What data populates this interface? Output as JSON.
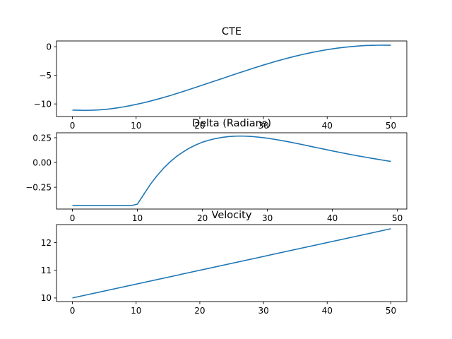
{
  "chart_data": [
    {
      "type": "line",
      "title": "CTE",
      "xlabel": "",
      "ylabel": "",
      "xlim": [
        -2.5,
        52.5
      ],
      "ylim": [
        -12.2,
        1.0
      ],
      "xticks": [
        0,
        10,
        20,
        30,
        40,
        50
      ],
      "xtick_labels": [
        "0",
        "10",
        "20",
        "30",
        "40",
        "50"
      ],
      "yticks": [
        0,
        -5,
        -10
      ],
      "ytick_labels": [
        "0",
        "−5",
        "−10"
      ],
      "grid": false,
      "color": "#1f77b4",
      "series": [
        {
          "x": [
            0,
            1,
            2,
            3,
            4,
            5,
            6,
            7,
            8,
            9,
            10,
            11,
            12,
            13,
            14,
            15,
            16,
            17,
            18,
            19,
            20,
            21,
            22,
            23,
            24,
            25,
            26,
            27,
            28,
            29,
            30,
            31,
            32,
            33,
            34,
            35,
            36,
            37,
            38,
            39,
            40,
            41,
            42,
            43,
            44,
            45,
            46,
            47,
            48,
            49,
            50
          ],
          "y": [
            -11.08,
            -11.1,
            -11.12,
            -11.1,
            -11.05,
            -10.97,
            -10.85,
            -10.7,
            -10.52,
            -10.31,
            -10.08,
            -9.84,
            -9.57,
            -9.28,
            -8.97,
            -8.65,
            -8.31,
            -7.96,
            -7.6,
            -7.24,
            -6.87,
            -6.5,
            -6.12,
            -5.75,
            -5.38,
            -5.0,
            -4.63,
            -4.27,
            -3.9,
            -3.55,
            -3.2,
            -2.87,
            -2.54,
            -2.24,
            -1.94,
            -1.66,
            -1.39,
            -1.15,
            -0.92,
            -0.71,
            -0.52,
            -0.35,
            -0.2,
            -0.07,
            0.04,
            0.13,
            0.2,
            0.24,
            0.26,
            0.27,
            0.25
          ]
        }
      ]
    },
    {
      "type": "line",
      "title": "Delta (Radians)",
      "xlabel": "",
      "ylabel": "",
      "xlim": [
        -2.45,
        51.45
      ],
      "ylim": [
        -0.47,
        0.3
      ],
      "xticks": [
        0,
        10,
        20,
        30,
        40,
        50
      ],
      "xtick_labels": [
        "0",
        "10",
        "20",
        "30",
        "40",
        "50"
      ],
      "yticks": [
        0.25,
        0.0,
        -0.25
      ],
      "ytick_labels": [
        "0.25",
        "0.00",
        "−0.25"
      ],
      "grid": false,
      "color": "#1f77b4",
      "series": [
        {
          "x": [
            0,
            1,
            2,
            3,
            4,
            5,
            6,
            7,
            8,
            9,
            10,
            11,
            12,
            13,
            14,
            15,
            16,
            17,
            18,
            19,
            20,
            21,
            22,
            23,
            24,
            25,
            26,
            27,
            28,
            29,
            30,
            31,
            32,
            33,
            34,
            35,
            36,
            37,
            38,
            39,
            40,
            41,
            42,
            43,
            44,
            45,
            46,
            47,
            48,
            49
          ],
          "y": [
            -0.436,
            -0.436,
            -0.436,
            -0.436,
            -0.436,
            -0.436,
            -0.436,
            -0.436,
            -0.436,
            -0.436,
            -0.42,
            -0.32,
            -0.22,
            -0.135,
            -0.06,
            0.005,
            0.06,
            0.105,
            0.145,
            0.178,
            0.205,
            0.225,
            0.241,
            0.253,
            0.261,
            0.266,
            0.267,
            0.265,
            0.26,
            0.253,
            0.245,
            0.235,
            0.224,
            0.212,
            0.199,
            0.186,
            0.172,
            0.158,
            0.144,
            0.131,
            0.117,
            0.104,
            0.091,
            0.078,
            0.066,
            0.055,
            0.043,
            0.032,
            0.021,
            0.011
          ]
        }
      ]
    },
    {
      "type": "line",
      "title": "Velocity",
      "xlabel": "",
      "ylabel": "",
      "xlim": [
        -2.5,
        52.5
      ],
      "ylim": [
        9.87,
        12.65
      ],
      "xticks": [
        0,
        10,
        20,
        30,
        40,
        50
      ],
      "xtick_labels": [
        "0",
        "10",
        "20",
        "30",
        "40",
        "50"
      ],
      "yticks": [
        10,
        11,
        12
      ],
      "ytick_labels": [
        "10",
        "11",
        "12"
      ],
      "grid": false,
      "color": "#1f77b4",
      "series": [
        {
          "x": [
            0,
            50
          ],
          "y": [
            10.0,
            12.5
          ]
        }
      ]
    }
  ]
}
